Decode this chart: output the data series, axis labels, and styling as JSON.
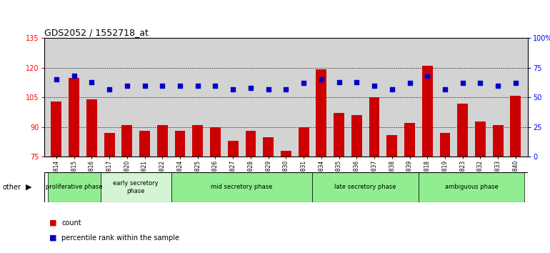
{
  "title": "GDS2052 / 1552718_at",
  "samples": [
    "GSM109814",
    "GSM109815",
    "GSM109816",
    "GSM109817",
    "GSM109820",
    "GSM109821",
    "GSM109822",
    "GSM109824",
    "GSM109825",
    "GSM109826",
    "GSM109827",
    "GSM109828",
    "GSM109829",
    "GSM109830",
    "GSM109831",
    "GSM109834",
    "GSM109835",
    "GSM109836",
    "GSM109837",
    "GSM109838",
    "GSM109839",
    "GSM109818",
    "GSM109819",
    "GSM109823",
    "GSM109832",
    "GSM109833",
    "GSM109840"
  ],
  "counts": [
    103,
    115,
    104,
    87,
    91,
    88,
    91,
    88,
    91,
    90,
    83,
    88,
    85,
    78,
    90,
    119,
    97,
    96,
    105,
    86,
    92,
    121,
    87,
    102,
    93,
    91,
    106
  ],
  "percentile_ranks": [
    65,
    68,
    63,
    57,
    60,
    60,
    60,
    60,
    60,
    60,
    57,
    58,
    57,
    57,
    62,
    65,
    63,
    63,
    60,
    57,
    62,
    68,
    57,
    62,
    62,
    60,
    62
  ],
  "phases": [
    {
      "name": "proliferative phase",
      "start": 0,
      "end": 3,
      "color": "#90EE90"
    },
    {
      "name": "early secretory\nphase",
      "start": 3,
      "end": 7,
      "color": "#d4f5d4"
    },
    {
      "name": "mid secretory phase",
      "start": 7,
      "end": 15,
      "color": "#90EE90"
    },
    {
      "name": "late secretory phase",
      "start": 15,
      "end": 21,
      "color": "#90EE90"
    },
    {
      "name": "ambiguous phase",
      "start": 21,
      "end": 27,
      "color": "#90EE90"
    }
  ],
  "bar_color": "#cc0000",
  "dot_color": "#0000cc",
  "ylim_left": [
    75,
    135
  ],
  "ylim_right": [
    0,
    100
  ],
  "yticks_left": [
    75,
    90,
    105,
    120,
    135
  ],
  "yticks_right": [
    0,
    25,
    50,
    75,
    100
  ],
  "ytick_labels_right": [
    "0",
    "25",
    "50",
    "75",
    "100%"
  ],
  "gridlines": [
    90,
    105,
    120
  ],
  "bg_color": "#d3d3d3",
  "fig_bg_color": "#ffffff"
}
